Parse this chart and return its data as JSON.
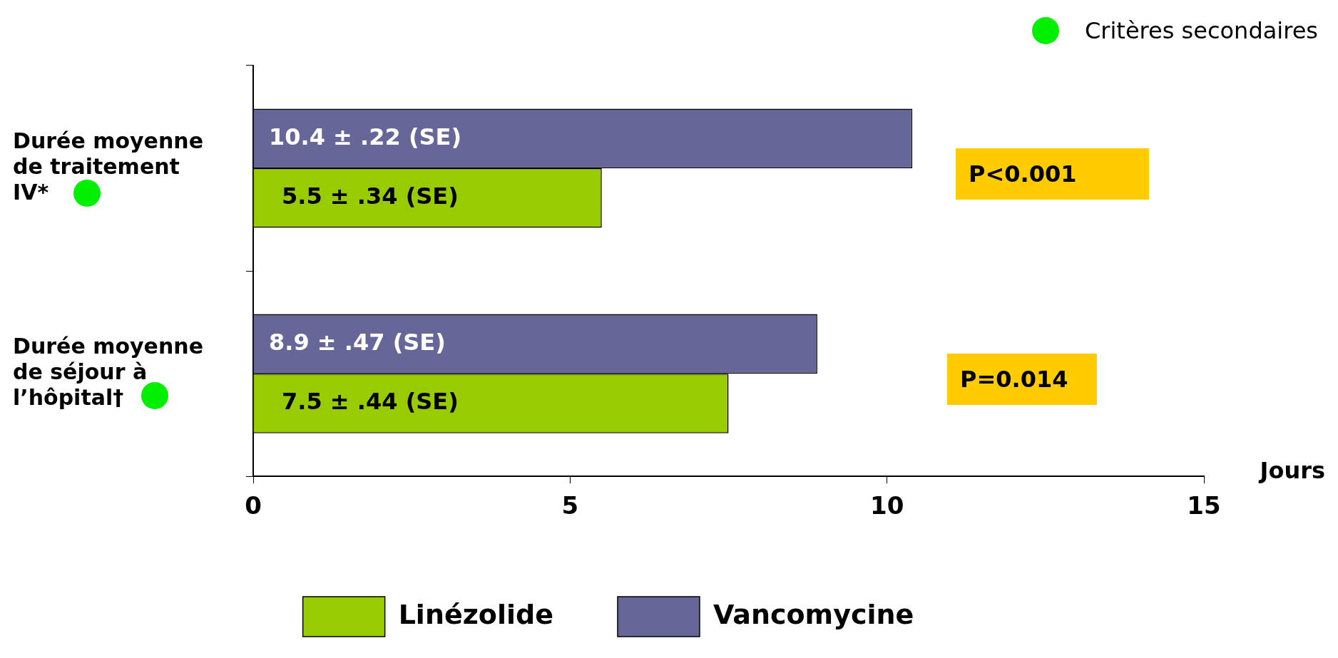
{
  "chart_data": {
    "type": "bar",
    "orientation": "horizontal",
    "categories": [
      "Durée moyenne de traitement IV*",
      "Durée moyenne de séjour à l’hôpital†"
    ],
    "series": [
      {
        "name": "Vancomycine",
        "color": "#666699",
        "values": [
          10.4,
          8.9
        ],
        "value_labels": [
          "10.4 ± .22 (SE)",
          "8.9 ± .47 (SE)"
        ]
      },
      {
        "name": "Linézolide",
        "color": "#99cc00",
        "values": [
          5.5,
          7.5
        ],
        "value_labels": [
          "5.5 ± .34 (SE)",
          "7.5 ± .44 (SE)"
        ]
      }
    ],
    "xlabel": "Jours",
    "xlim": [
      0,
      15
    ],
    "xticks": [
      0,
      5,
      10,
      15
    ],
    "grid": false,
    "legend": "bottom",
    "annotations": [
      "Critères secondaires",
      "P<0.001",
      "P=0.014"
    ]
  }
}
